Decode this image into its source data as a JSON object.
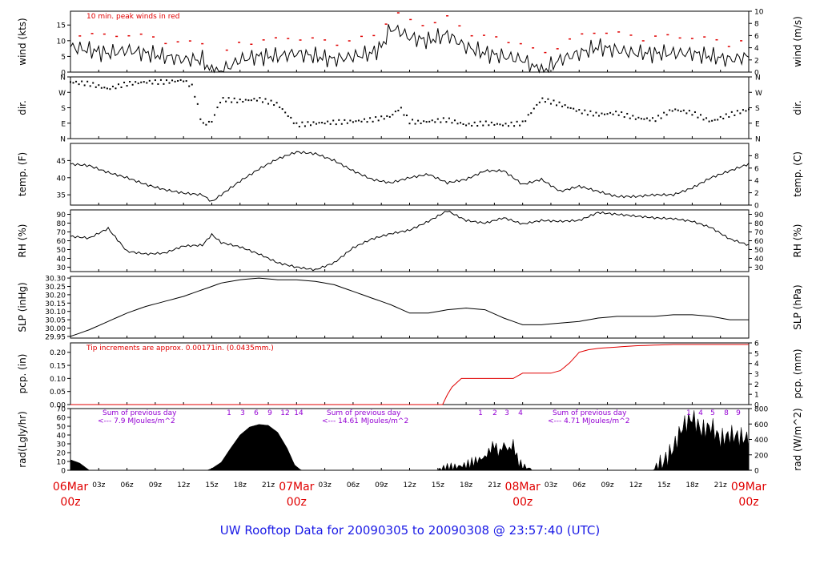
{
  "title": "UW Rooftop Data for 20090305  to  20090308 @ 23:57:40  (UTC)",
  "colors": {
    "data": "#000000",
    "precip": "#e00000",
    "annotation": "#e00000",
    "daylabel": "#e00000",
    "solar_note": "#9400d3",
    "title": "#1a1ae6"
  },
  "x_axis": {
    "hour_ticks": [
      "03z",
      "06z",
      "09z",
      "12z",
      "15z",
      "18z",
      "21z"
    ],
    "day_labels": [
      {
        "date": "06Mar",
        "hour": "00z",
        "t": 0
      },
      {
        "date": "07Mar",
        "hour": "00z",
        "t": 24
      },
      {
        "date": "08Mar",
        "hour": "00z",
        "t": 48
      },
      {
        "date": "09Mar",
        "hour": "00z",
        "t": 72
      }
    ]
  },
  "chart_data": [
    {
      "type": "line",
      "id": "wind",
      "ylabel_left": "wind (kts)",
      "ylabel_right": "wind (m/s)",
      "ylim": [
        0,
        19.4
      ],
      "yticks": [
        0,
        5,
        10,
        15
      ],
      "right_ylim": [
        0,
        10
      ],
      "right_ticks": [
        0,
        2,
        4,
        6,
        8,
        10
      ],
      "annotation": "10 min. peak winds in red",
      "x": [
        0,
        2,
        4,
        6,
        8,
        10,
        12,
        14,
        15,
        16,
        18,
        20,
        22,
        24,
        26,
        28,
        30,
        32,
        33,
        34,
        35,
        36,
        38,
        40,
        42,
        44,
        46,
        48,
        50,
        52,
        54,
        56,
        58,
        60,
        62,
        64,
        66,
        68,
        70,
        72
      ],
      "series": [
        {
          "name": "wind",
          "values": [
            8,
            7,
            6,
            7,
            6,
            5,
            4,
            4,
            0,
            0,
            4,
            5,
            5,
            6,
            5,
            4,
            5,
            6,
            8,
            14,
            13,
            11,
            10,
            12,
            8,
            6,
            5,
            4,
            0,
            4,
            6,
            8,
            7,
            6,
            6,
            6,
            6,
            5,
            4,
            5
          ]
        }
      ]
    },
    {
      "type": "scatter",
      "id": "dir",
      "ylabel_left": "dir.",
      "ylabel_right": "dir.",
      "ylim": [
        0,
        360
      ],
      "tick_labels": [
        {
          "v": 0,
          "label": "N"
        },
        {
          "v": 90,
          "label": "E"
        },
        {
          "v": 180,
          "label": "S"
        },
        {
          "v": 270,
          "label": "W"
        },
        {
          "v": 360,
          "label": "N"
        }
      ],
      "x": [
        0,
        2,
        4,
        6,
        8,
        10,
        12,
        13,
        14,
        15,
        16,
        18,
        20,
        22,
        24,
        26,
        28,
        30,
        32,
        34,
        35,
        36,
        37,
        38,
        40,
        42,
        44,
        46,
        48,
        50,
        52,
        54,
        56,
        58,
        60,
        62,
        64,
        66,
        68,
        70,
        72
      ],
      "series": [
        {
          "name": "direction",
          "values": [
            330,
            320,
            290,
            320,
            330,
            330,
            340,
            300,
            80,
            100,
            230,
            220,
            230,
            200,
            80,
            90,
            95,
            100,
            110,
            130,
            180,
            100,
            95,
            100,
            110,
            80,
            90,
            80,
            90,
            230,
            200,
            160,
            140,
            150,
            120,
            110,
            170,
            150,
            100,
            140,
            170
          ]
        }
      ]
    },
    {
      "type": "line",
      "id": "temp",
      "ylabel_left": "temp. (F)",
      "ylabel_right": "temp. (C)",
      "ylim": [
        32,
        50
      ],
      "yticks": [
        35,
        40,
        45
      ],
      "right_ylim": [
        0,
        10
      ],
      "right_ticks": [
        0,
        2,
        4,
        6,
        8
      ],
      "x": [
        0,
        2,
        4,
        6,
        8,
        10,
        12,
        14,
        15,
        16,
        18,
        20,
        22,
        24,
        26,
        28,
        30,
        32,
        34,
        36,
        38,
        40,
        42,
        44,
        46,
        48,
        50,
        52,
        54,
        56,
        58,
        60,
        62,
        64,
        66,
        68,
        70,
        72
      ],
      "series": [
        {
          "name": "temperature",
          "values": [
            44,
            43.5,
            41.5,
            40,
            38,
            36.5,
            35.5,
            35,
            33,
            35,
            39,
            42.5,
            45.5,
            47.5,
            47,
            45,
            42,
            39.5,
            38.5,
            40,
            41,
            38.5,
            39.5,
            42,
            42,
            38,
            39.5,
            36,
            37.5,
            36,
            34.5,
            34.5,
            35,
            35,
            37,
            40,
            42,
            44
          ]
        }
      ]
    },
    {
      "type": "line",
      "id": "rh",
      "ylabel_left": "RH (%)",
      "ylabel_right": "RH (%)",
      "ylim": [
        25,
        95
      ],
      "yticks": [
        30,
        40,
        50,
        60,
        70,
        80,
        90
      ],
      "right_ticks": [
        30,
        40,
        50,
        60,
        70,
        80,
        90
      ],
      "x": [
        0,
        2,
        4,
        6,
        8,
        10,
        12,
        14,
        15,
        16,
        18,
        20,
        22,
        24,
        26,
        28,
        30,
        32,
        34,
        36,
        38,
        40,
        42,
        44,
        46,
        48,
        50,
        52,
        54,
        56,
        58,
        60,
        62,
        64,
        66,
        68,
        70,
        72
      ],
      "series": [
        {
          "name": "relative humidity",
          "values": [
            65,
            63,
            74,
            48,
            45,
            46,
            54,
            55,
            67,
            58,
            53,
            45,
            35,
            30,
            27,
            35,
            52,
            62,
            68,
            72,
            82,
            94,
            83,
            80,
            86,
            79,
            83,
            82,
            83,
            92,
            90,
            88,
            86,
            85,
            82,
            75,
            62,
            55
          ]
        }
      ]
    },
    {
      "type": "line",
      "id": "slp",
      "ylabel_left": "SLP (inHg)",
      "ylabel_right": "SLP (hPa)",
      "ylim": [
        29.94,
        30.31
      ],
      "yticks": [
        29.95,
        30.0,
        30.05,
        30.1,
        30.15,
        30.2,
        30.25,
        30.3
      ],
      "ytick_labels": [
        "29.95",
        "30.00",
        "30.05",
        "30.10",
        "30.15",
        "30.20",
        "30.25",
        "30.30"
      ],
      "right_ticks": [
        1014,
        1016,
        1018,
        1020,
        1022,
        1024,
        1026
      ],
      "x": [
        0,
        2,
        4,
        6,
        8,
        10,
        12,
        14,
        16,
        18,
        20,
        22,
        24,
        26,
        28,
        30,
        32,
        34,
        36,
        38,
        40,
        42,
        44,
        46,
        48,
        50,
        52,
        54,
        56,
        58,
        60,
        62,
        64,
        66,
        68,
        70,
        72
      ],
      "series": [
        {
          "name": "sea level pressure",
          "values": [
            29.95,
            29.99,
            30.04,
            30.09,
            30.13,
            30.16,
            30.19,
            30.23,
            30.27,
            30.29,
            30.3,
            30.29,
            30.29,
            30.28,
            30.26,
            30.22,
            30.18,
            30.14,
            30.09,
            30.09,
            30.11,
            30.12,
            30.11,
            30.06,
            30.02,
            30.02,
            30.03,
            30.04,
            30.06,
            30.07,
            30.07,
            30.07,
            30.08,
            30.08,
            30.07,
            30.05,
            30.05
          ]
        }
      ]
    },
    {
      "type": "line",
      "id": "pcp",
      "ylabel_left": "pcp. (in)",
      "ylabel_right": "pcp. (mm)",
      "ylim": [
        0,
        0.236
      ],
      "yticks": [
        0.0,
        0.05,
        0.1,
        0.15,
        0.2
      ],
      "ytick_labels": [
        "0.00",
        "0.05",
        "0.10",
        "0.15",
        "0.20"
      ],
      "right_ylim": [
        0,
        6
      ],
      "right_ticks": [
        0,
        1,
        2,
        3,
        4,
        5,
        6
      ],
      "annotation": "Tip increments are approx. 0.00171in. (0.0435mm.)",
      "x": [
        0,
        39.5,
        40.3,
        41.5,
        47,
        48,
        51,
        52,
        53,
        54,
        55,
        56,
        60,
        64,
        68,
        72
      ],
      "series": [
        {
          "name": "precipitation",
          "values": [
            0,
            0,
            0.06,
            0.1,
            0.1,
            0.12,
            0.12,
            0.13,
            0.16,
            0.2,
            0.21,
            0.215,
            0.225,
            0.23,
            0.23,
            0.23
          ]
        }
      ]
    },
    {
      "type": "area",
      "id": "rad",
      "ylabel_left": "rad(Lgly/hr)",
      "ylabel_right": "rad (W/m^2)",
      "ylim": [
        0,
        70
      ],
      "yticks": [
        0,
        10,
        20,
        30,
        40,
        50,
        60,
        70
      ],
      "right_ylim": [
        0,
        800
      ],
      "right_ticks": [
        0,
        200,
        400,
        600,
        800
      ],
      "x": [
        0,
        1,
        2,
        14.5,
        15,
        16,
        17,
        18,
        19,
        20,
        21,
        22,
        23,
        23.8,
        24.5,
        39,
        40,
        42,
        44,
        45,
        45.5,
        46,
        46.5,
        47,
        47.5,
        48,
        48.5,
        49,
        62,
        63,
        64,
        65,
        66,
        67,
        68,
        69,
        70,
        71,
        72
      ],
      "series": [
        {
          "name": "solar radiation",
          "values": [
            12,
            8,
            0,
            0,
            2,
            9,
            25,
            40,
            49,
            52,
            51,
            43,
            25,
            6,
            0,
            0,
            2,
            6,
            15,
            30,
            18,
            30,
            22,
            30,
            10,
            5,
            3,
            0,
            0,
            10,
            25,
            50,
            60,
            45,
            50,
            35,
            40,
            38,
            35
          ]
        }
      ],
      "day_notes": [
        {
          "line1": "Sum of previous day",
          "line2": "<--- 7.9 MJoules/m^2"
        },
        {
          "line1": "Sum of previous day",
          "line2": "<--- 14.61 MJoules/m^2"
        },
        {
          "line1": "Sum of previous day",
          "line2": "<--- 4.71 MJoules/m^2"
        }
      ],
      "hour_marks": [
        [
          "1",
          "3",
          "6",
          "9",
          "12",
          "14"
        ],
        [
          "1",
          "2",
          "3",
          "4"
        ],
        [
          "1",
          "4",
          "5",
          "8",
          "9"
        ]
      ]
    }
  ]
}
